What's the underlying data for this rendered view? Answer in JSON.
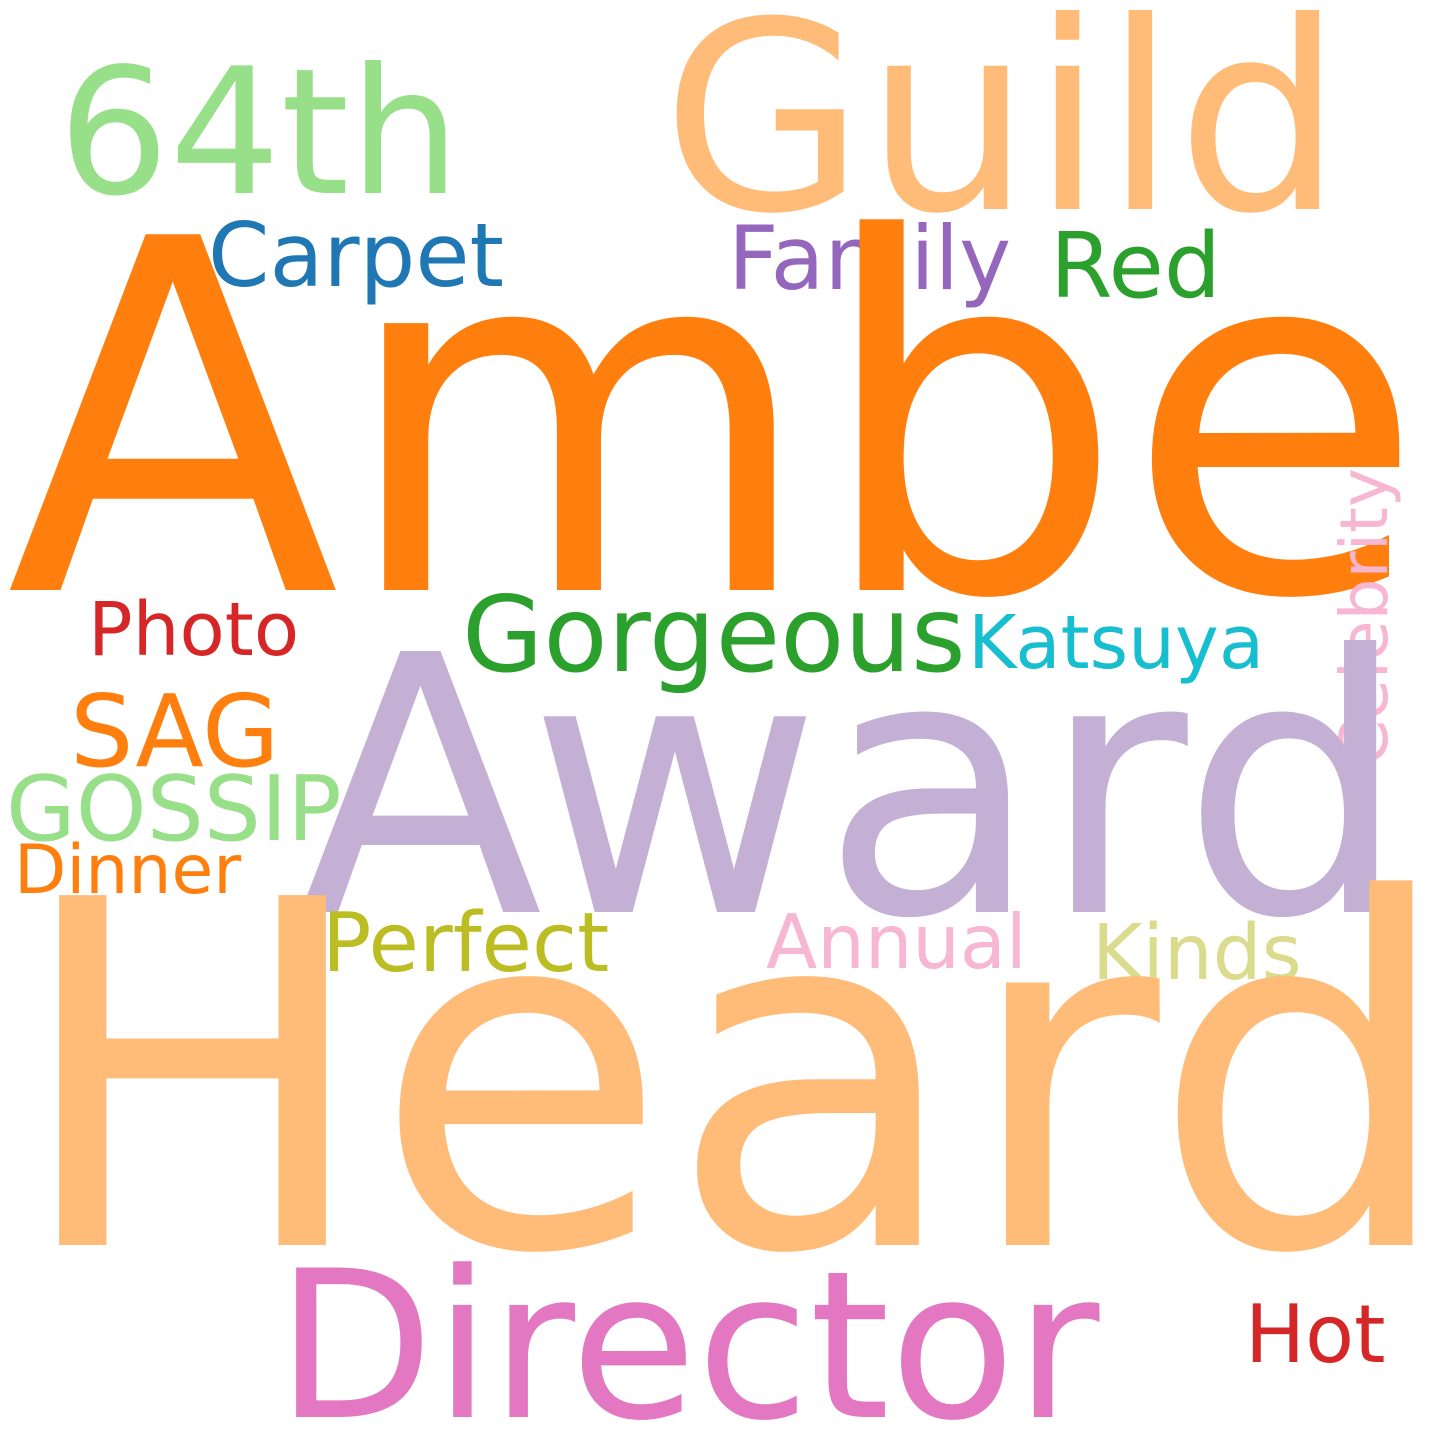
{
  "words": {
    "guild": {
      "text": "Guild",
      "color": "#ffbb78"
    },
    "sixtyfour": {
      "text": "64th",
      "color": "#98df8a"
    },
    "carpet": {
      "text": "Carpet",
      "color": "#1f77b4"
    },
    "family": {
      "text": "Family",
      "color": "#9467bd"
    },
    "red": {
      "text": "Red",
      "color": "#2ca02c"
    },
    "amber": {
      "text": "Amber",
      "color": "#ff7f0e"
    },
    "photo": {
      "text": "Photo",
      "color": "#d62728"
    },
    "gorgeous": {
      "text": "Gorgeous",
      "color": "#2ca02c"
    },
    "katsuya": {
      "text": "Katsuya",
      "color": "#17becf"
    },
    "celebrity": {
      "text": "Celebrity",
      "color": "#f7b6d2"
    },
    "award": {
      "text": "Award",
      "color": "#c5b0d5"
    },
    "sag": {
      "text": "SAG",
      "color": "#ff7f0e"
    },
    "gossip": {
      "text": "GOSSIP",
      "color": "#98df8a"
    },
    "dinner": {
      "text": "Dinner",
      "color": "#ff7f0e"
    },
    "perfect": {
      "text": "Perfect",
      "color": "#bcbd22"
    },
    "annual": {
      "text": "Annual",
      "color": "#f7b6d2"
    },
    "kinds": {
      "text": "Kinds",
      "color": "#dbdb8d"
    },
    "heard": {
      "text": "Heard",
      "color": "#ffbb78"
    },
    "director": {
      "text": "Director",
      "color": "#e377c2"
    },
    "hot": {
      "text": "Hot",
      "color": "#d62728"
    }
  }
}
